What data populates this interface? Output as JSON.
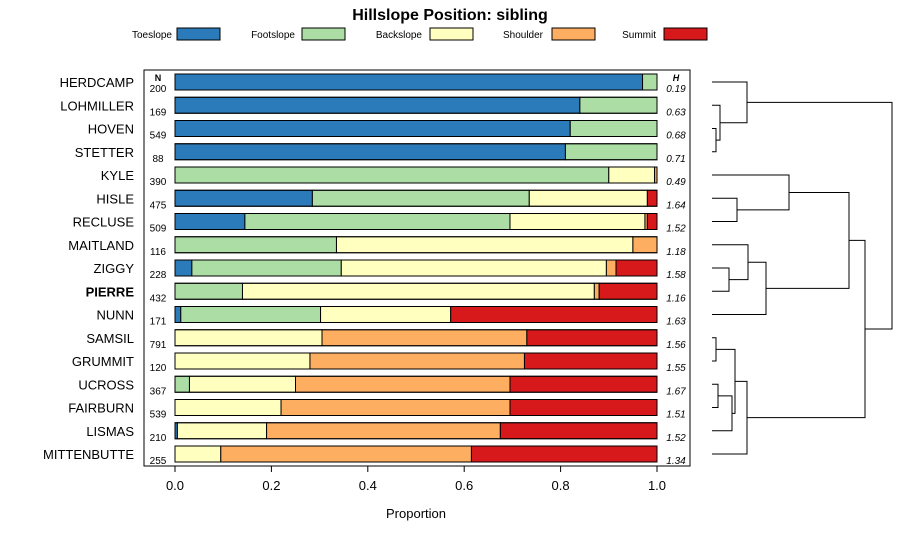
{
  "chart_data": {
    "type": "stacked-horizontal-bar",
    "title": "Hillslope Position: sibling",
    "xlabel": "Proportion",
    "xlim": [
      0,
      1
    ],
    "xticks": [
      "0.0",
      "0.2",
      "0.4",
      "0.6",
      "0.8",
      "1.0"
    ],
    "n_header": "N",
    "h_header": "H",
    "classes": [
      {
        "name": "Toeslope",
        "color": "#2b7bba"
      },
      {
        "name": "Footslope",
        "color": "#abdda4"
      },
      {
        "name": "Backslope",
        "color": "#ffffbf"
      },
      {
        "name": "Shoulder",
        "color": "#fdae61"
      },
      {
        "name": "Summit",
        "color": "#d7191c"
      }
    ],
    "rows": [
      {
        "name": "HERDCAMP",
        "n": "200",
        "h": "0.19",
        "bold": false,
        "values": [
          0.97,
          0.03,
          0.0,
          0.0,
          0.0
        ]
      },
      {
        "name": "LOHMILLER",
        "n": "169",
        "h": "0.63",
        "bold": false,
        "values": [
          0.84,
          0.16,
          0.0,
          0.0,
          0.0
        ]
      },
      {
        "name": "HOVEN",
        "n": "549",
        "h": "0.68",
        "bold": false,
        "values": [
          0.82,
          0.18,
          0.0,
          0.0,
          0.0
        ]
      },
      {
        "name": "STETTER",
        "n": "88",
        "h": "0.71",
        "bold": false,
        "values": [
          0.81,
          0.19,
          0.0,
          0.0,
          0.0
        ]
      },
      {
        "name": "KYLE",
        "n": "390",
        "h": "0.49",
        "bold": false,
        "values": [
          0.0,
          0.9,
          0.095,
          0.005,
          0.0
        ]
      },
      {
        "name": "HISLE",
        "n": "475",
        "h": "1.64",
        "bold": false,
        "values": [
          0.285,
          0.45,
          0.245,
          0.0,
          0.02
        ]
      },
      {
        "name": "RECLUSE",
        "n": "509",
        "h": "1.52",
        "bold": false,
        "values": [
          0.145,
          0.55,
          0.28,
          0.005,
          0.02
        ]
      },
      {
        "name": "MAITLAND",
        "n": "116",
        "h": "1.18",
        "bold": false,
        "values": [
          0.0,
          0.335,
          0.615,
          0.05,
          0.0
        ]
      },
      {
        "name": "ZIGGY",
        "n": "228",
        "h": "1.58",
        "bold": false,
        "values": [
          0.035,
          0.31,
          0.55,
          0.02,
          0.085
        ]
      },
      {
        "name": "PIERRE",
        "n": "432",
        "h": "1.16",
        "bold": true,
        "values": [
          0.0,
          0.14,
          0.73,
          0.01,
          0.12
        ]
      },
      {
        "name": "NUNN",
        "n": "171",
        "h": "1.63",
        "bold": false,
        "values": [
          0.012,
          0.29,
          0.27,
          0.0,
          0.428
        ]
      },
      {
        "name": "SAMSIL",
        "n": "791",
        "h": "1.56",
        "bold": false,
        "values": [
          0.0,
          0.0,
          0.305,
          0.425,
          0.27
        ]
      },
      {
        "name": "GRUMMIT",
        "n": "120",
        "h": "1.55",
        "bold": false,
        "values": [
          0.0,
          0.0,
          0.28,
          0.445,
          0.275
        ]
      },
      {
        "name": "UCROSS",
        "n": "367",
        "h": "1.67",
        "bold": false,
        "values": [
          0.0,
          0.03,
          0.22,
          0.445,
          0.305
        ]
      },
      {
        "name": "FAIRBURN",
        "n": "539",
        "h": "1.51",
        "bold": false,
        "values": [
          0.0,
          0.0,
          0.22,
          0.475,
          0.305
        ]
      },
      {
        "name": "LISMAS",
        "n": "210",
        "h": "1.52",
        "bold": false,
        "values": [
          0.005,
          0.0,
          0.185,
          0.485,
          0.325
        ]
      },
      {
        "name": "MITTENBUTTE",
        "n": "255",
        "h": "1.34",
        "bold": false,
        "values": [
          0.0,
          0.0,
          0.095,
          0.52,
          0.385
        ]
      }
    ]
  }
}
